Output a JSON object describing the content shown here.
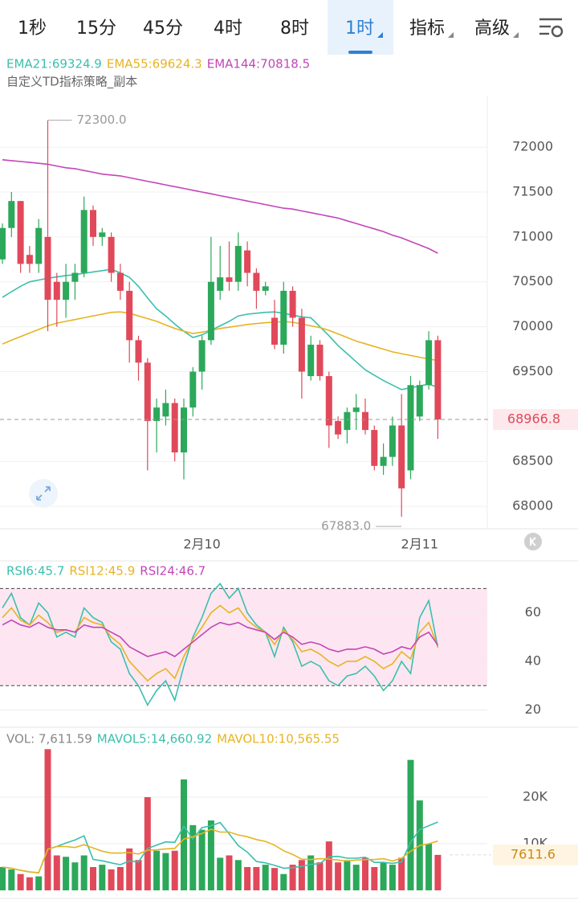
{
  "tabs": [
    {
      "label": "1秒"
    },
    {
      "label": "15分"
    },
    {
      "label": "45分"
    },
    {
      "label": "4时"
    },
    {
      "label": "8时"
    },
    {
      "label": "1时",
      "active": true,
      "dropdown": true
    },
    {
      "label": "指标",
      "dropdown": true
    },
    {
      "label": "高级",
      "dropdown": true
    }
  ],
  "chart_data": [
    {
      "type": "candlestick",
      "subtitle": "自定义TD指标策略_副本",
      "categories": [
        null,
        null,
        null,
        null,
        null,
        null,
        null,
        null,
        null,
        null,
        null,
        null,
        null,
        null,
        null,
        null,
        null,
        null,
        null,
        null,
        null,
        null,
        "2月10",
        null,
        null,
        null,
        null,
        null,
        null,
        null,
        null,
        null,
        null,
        null,
        null,
        null,
        null,
        null,
        null,
        null,
        null,
        null,
        null,
        null,
        null,
        null,
        "2月11",
        null,
        null
      ],
      "open": [
        70750,
        71100,
        71400,
        70800,
        70700,
        71000,
        70500,
        70300,
        70500,
        70600,
        71300,
        71000,
        71000,
        70600,
        70400,
        69850,
        69600,
        68950,
        69000,
        69150,
        68600,
        69100,
        69500,
        69850,
        70400,
        70550,
        70500,
        70850,
        70600,
        70400,
        70100,
        69800,
        70400,
        70100,
        69450,
        69800,
        69450,
        68950,
        68850,
        69050,
        69050,
        68850,
        68450,
        68550,
        68900,
        68400,
        69000,
        69350,
        69850
      ],
      "high": [
        71150,
        71500,
        71400,
        70900,
        71200,
        72300,
        70600,
        70700,
        70700,
        71450,
        71350,
        71100,
        71050,
        70700,
        70500,
        69900,
        69650,
        69200,
        69300,
        69200,
        69200,
        69550,
        69900,
        71000,
        70900,
        70950,
        71050,
        70950,
        70650,
        70500,
        70300,
        70500,
        70450,
        70200,
        69900,
        69850,
        69500,
        69000,
        69100,
        69250,
        69200,
        68900,
        68700,
        69000,
        69250,
        69450,
        69400,
        69950,
        69900
      ],
      "low": [
        70700,
        71000,
        70600,
        70600,
        70600,
        69950,
        70000,
        70100,
        70300,
        70550,
        70900,
        70900,
        70500,
        70300,
        69600,
        69400,
        68400,
        68600,
        68900,
        68500,
        68300,
        69000,
        69300,
        69800,
        70300,
        70400,
        70400,
        70450,
        70200,
        70350,
        69750,
        69700,
        70000,
        69200,
        69400,
        69400,
        68650,
        68750,
        68700,
        68850,
        68800,
        68400,
        68350,
        68450,
        67883,
        68300,
        68950,
        69300,
        68750
      ],
      "close": [
        71100,
        71400,
        70700,
        70700,
        71100,
        70300,
        70300,
        70500,
        70600,
        71300,
        71000,
        71050,
        70600,
        70400,
        69850,
        69600,
        68950,
        69100,
        69150,
        68600,
        69100,
        69500,
        69850,
        70500,
        70550,
        70500,
        70900,
        70600,
        70400,
        70450,
        69800,
        70400,
        70100,
        69500,
        69800,
        69450,
        68900,
        68800,
        69050,
        69100,
        68850,
        68450,
        68550,
        68900,
        68200,
        69350,
        69350,
        69850,
        68966.8
      ],
      "up_color": "#2ca85a",
      "down_color": "#e0495a",
      "series": [
        {
          "name": "EMA21:69324.9",
          "color": "#3bbfad",
          "values": [
            70327,
            70390,
            70450,
            70500,
            70520,
            70540,
            70555,
            70570,
            70580,
            70595,
            70610,
            70625,
            70640,
            70600,
            70550,
            70450,
            70320,
            70200,
            70120,
            70030,
            69950,
            69880,
            69910,
            69960,
            70010,
            70060,
            70120,
            70140,
            70150,
            70160,
            70165,
            70150,
            70130,
            70110,
            70100,
            70000,
            69900,
            69790,
            69700,
            69610,
            69520,
            69460,
            69400,
            69350,
            69300,
            69320,
            69340,
            69360,
            69324.9
          ]
        },
        {
          "name": "EMA55:69624.3",
          "color": "#e6b422",
          "values": [
            69808,
            69850,
            69890,
            69930,
            69970,
            70010,
            70040,
            70060,
            70080,
            70100,
            70120,
            70140,
            70160,
            70165,
            70150,
            70120,
            70090,
            70060,
            70020,
            69980,
            69950,
            69925,
            69940,
            69960,
            69980,
            69995,
            70010,
            70025,
            70035,
            70045,
            70050,
            70058,
            70050,
            70030,
            70010,
            69990,
            69960,
            69920,
            69880,
            69840,
            69810,
            69780,
            69750,
            69720,
            69700,
            69680,
            69660,
            69640,
            69624.3
          ]
        },
        {
          "name": "EMA144:70818.5",
          "color": "#c246b8",
          "values": [
            71860,
            71850,
            71840,
            71830,
            71820,
            71810,
            71790,
            71770,
            71760,
            71740,
            71720,
            71700,
            71690,
            71680,
            71660,
            71640,
            71620,
            71600,
            71580,
            71560,
            71540,
            71520,
            71500,
            71480,
            71460,
            71440,
            71420,
            71400,
            71380,
            71360,
            71340,
            71320,
            71310,
            71290,
            71270,
            71250,
            71230,
            71210,
            71180,
            71150,
            71120,
            71090,
            71060,
            71020,
            70990,
            70950,
            70910,
            70870,
            70818.5
          ]
        }
      ],
      "ylim": [
        67750,
        72565
      ],
      "yticks": [
        68000,
        68500,
        69500,
        70000,
        70500,
        71000,
        71500,
        72000
      ],
      "grid": true,
      "last_price": {
        "value": 68966.8,
        "label": "68966.8"
      },
      "max_label": "72300.0",
      "min_label": "67883.0"
    },
    {
      "type": "line",
      "series": [
        {
          "name": "RSI6:45.7",
          "color": "#3bbfad",
          "values": [
            62,
            68,
            58,
            55,
            64,
            60,
            50,
            52,
            50,
            62,
            58,
            56,
            48,
            45,
            35,
            30,
            22,
            28,
            32,
            24,
            38,
            50,
            58,
            68,
            72,
            66,
            70,
            60,
            55,
            52,
            42,
            54,
            48,
            38,
            40,
            38,
            32,
            30,
            34,
            35,
            38,
            34,
            28,
            32,
            40,
            35,
            58,
            65,
            45.7
          ]
        },
        {
          "name": "RSI12:45.9",
          "color": "#e6b422",
          "values": [
            58,
            62,
            57,
            55,
            59,
            56,
            52,
            53,
            52,
            58,
            56,
            55,
            50,
            47,
            40,
            36,
            32,
            35,
            37,
            33,
            42,
            49,
            54,
            60,
            63,
            60,
            62,
            57,
            54,
            52,
            47,
            53,
            49,
            44,
            45,
            43,
            40,
            38,
            40,
            40,
            42,
            40,
            37,
            39,
            44,
            41,
            52,
            56,
            45.9
          ]
        },
        {
          "name": "RSI24:46.7",
          "color": "#c246b8",
          "values": [
            55,
            57,
            55,
            54,
            56,
            54,
            53,
            53,
            52,
            55,
            54,
            54,
            52,
            50,
            46,
            44,
            42,
            43,
            44,
            42,
            45,
            48,
            51,
            54,
            56,
            55,
            56,
            54,
            53,
            52,
            49,
            52,
            50,
            47,
            48,
            47,
            45,
            44,
            45,
            45,
            46,
            45,
            43,
            44,
            46,
            45,
            50,
            52,
            46.7
          ]
        }
      ],
      "ylim": [
        12.9,
        80.7
      ],
      "yticks": [
        20,
        40,
        60
      ],
      "bands": [
        30,
        70
      ],
      "band_color": "#fde6f1",
      "grid": true
    },
    {
      "type": "bar",
      "name": "VOL: 7,611.59",
      "values": [
        5000,
        4500,
        3500,
        2800,
        3000,
        30300,
        7500,
        7200,
        6000,
        7500,
        5000,
        5500,
        4500,
        5000,
        9000,
        6500,
        20000,
        8500,
        8000,
        8500,
        23800,
        14000,
        13000,
        15000,
        7000,
        7500,
        6500,
        5000,
        5000,
        5500,
        4800,
        3500,
        5500,
        6500,
        7500,
        6000,
        10500,
        6000,
        6500,
        5500,
        7000,
        5000,
        6000,
        5500,
        7000,
        28000,
        19300,
        10000,
        7611.59
      ],
      "series": [
        {
          "name": "MAVOL5:14,660.92",
          "color": "#3bbfad",
          "values": [
            5000,
            4750,
            4300,
            3950,
            3760,
            8820,
            9420,
            10160,
            10800,
            11700,
            6640,
            6340,
            5900,
            5500,
            6300,
            6100,
            9000,
            9700,
            10400,
            10300,
            13760,
            11000,
            13460,
            13860,
            14560,
            12100,
            9600,
            8200,
            6200,
            5900,
            5360,
            4760,
            4860,
            5160,
            5560,
            5760,
            7200,
            7300,
            6900,
            6900,
            7100,
            6000,
            6000,
            5800,
            6100,
            10300,
            13060,
            13860,
            14660.92
          ]
        },
        {
          "name": "MAVOL10:10,565.55",
          "color": "#e6b422",
          "values": [
            5000,
            4750,
            4300,
            3950,
            3760,
            8820,
            9420,
            9400,
            9200,
            9800,
            9100,
            8400,
            8000,
            8000,
            8100,
            7800,
            8600,
            8700,
            8900,
            9000,
            11000,
            11500,
            12200,
            13100,
            12500,
            12500,
            11900,
            11500,
            10900,
            10500,
            9700,
            8500,
            7700,
            6700,
            6600,
            6800,
            6700,
            6500,
            6300,
            6500,
            6600,
            6600,
            6800,
            6300,
            6900,
            8400,
            9600,
            10000,
            10565.55
          ]
        }
      ],
      "ylim": [
        0,
        30700
      ],
      "yticks": [
        {
          "value": 10000,
          "label": "10K"
        },
        {
          "value": 20000,
          "label": "20K"
        }
      ],
      "grid": true,
      "last_value": {
        "value": 7611.59,
        "label": "7611.6"
      }
    }
  ]
}
